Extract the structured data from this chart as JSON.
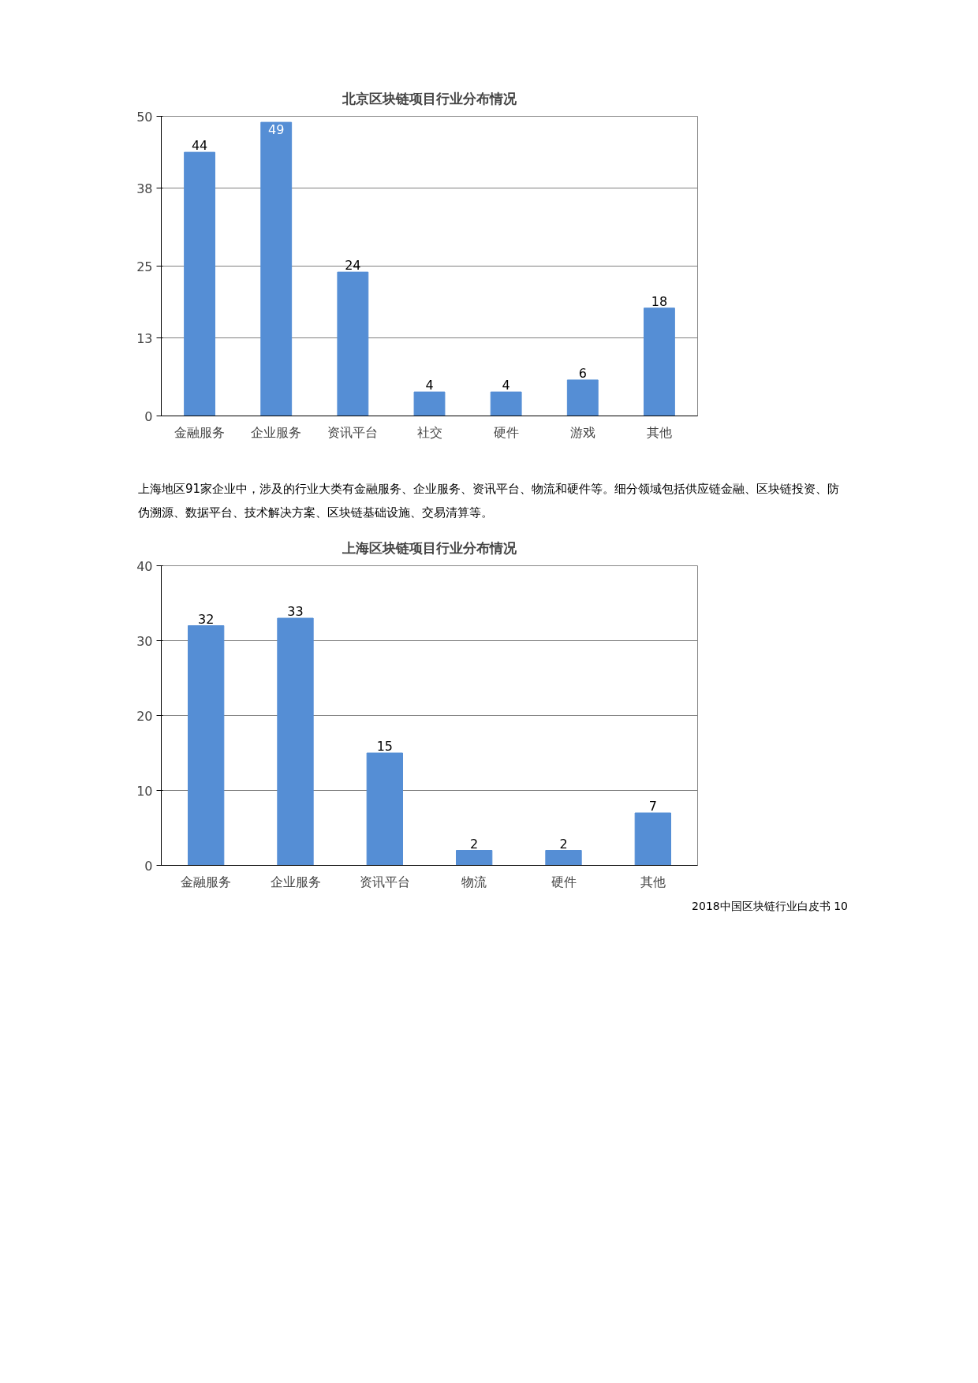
{
  "chart_data": [
    {
      "type": "bar",
      "title": "北京区块链项目行业分布情况",
      "categories": [
        "金融服务",
        "企业服务",
        "资讯平台",
        "社交",
        "硬件",
        "游戏",
        "其他"
      ],
      "values": [
        44,
        49,
        24,
        4,
        4,
        6,
        18
      ],
      "color": "#558ed5",
      "ylim": [
        0,
        50
      ],
      "yticks": [
        0,
        13,
        25,
        38,
        50
      ],
      "grid": "y",
      "data_labels": true
    },
    {
      "type": "bar",
      "title": "上海区块链项目行业分布情况",
      "categories": [
        "金融服务",
        "企业服务",
        "资讯平台",
        "物流",
        "硬件",
        "其他"
      ],
      "values": [
        32,
        33,
        15,
        2,
        2,
        7
      ],
      "color": "#558ed5",
      "ylim": [
        0,
        40
      ],
      "yticks": [
        0,
        10,
        20,
        30,
        40
      ],
      "grid": "y",
      "data_labels": true,
      "annotations": [
        "上海地区91家企业中，涉及的行业大类有金融服务、企业服务、资讯平台、物流和硬件等。细分领域包括供应链金融、区块链投资、防伪溯源、数据平台、技术解决方案、区块链基础设施、交易清算等。",
        "2018中国区块链行业白皮书  10"
      ]
    }
  ]
}
